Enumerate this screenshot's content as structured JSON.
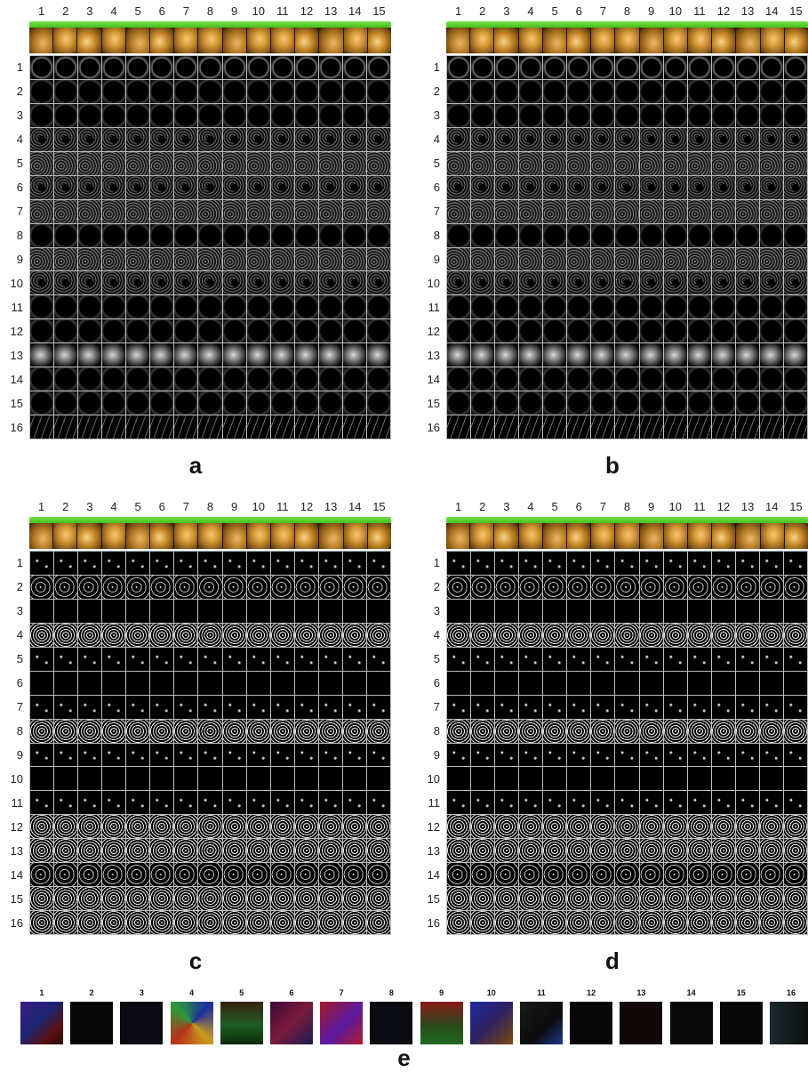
{
  "columns": [
    "1",
    "2",
    "3",
    "4",
    "5",
    "6",
    "7",
    "8",
    "9",
    "10",
    "11",
    "12",
    "13",
    "14",
    "15"
  ],
  "rows": [
    "1",
    "2",
    "3",
    "4",
    "5",
    "6",
    "7",
    "8",
    "9",
    "10",
    "11",
    "12",
    "13",
    "14",
    "15",
    "16"
  ],
  "panels": {
    "a": {
      "letter": "a"
    },
    "b": {
      "letter": "b"
    },
    "c": {
      "letter": "c"
    },
    "d": {
      "letter": "d"
    },
    "e": {
      "letter": "e",
      "labels": [
        "1",
        "2",
        "3",
        "4",
        "5",
        "6",
        "7",
        "8",
        "9",
        "10",
        "11",
        "12",
        "13",
        "14",
        "15",
        "16"
      ]
    }
  },
  "colors": {
    "green_bar": "#44c21b",
    "grid_lines": "#bdbdbd",
    "background": "#ffffff"
  },
  "icons": [
    "tooth-photo-thumbnail"
  ]
}
